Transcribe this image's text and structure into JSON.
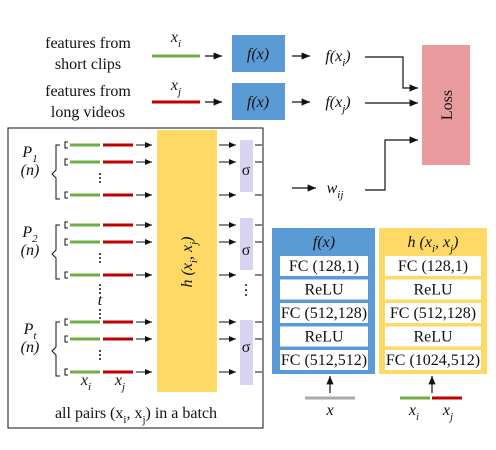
{
  "inputs": [
    {
      "lines": [
        "features from",
        "short clips"
      ],
      "var": "x",
      "sub": "i"
    },
    {
      "lines": [
        "features from",
        "long videos"
      ],
      "var": "x",
      "sub": "j"
    }
  ],
  "encoder": "f(x)",
  "outputs": [
    {
      "pre": "f(x",
      "sub": "i",
      "post": ")"
    },
    {
      "pre": "f(x",
      "sub": "j",
      "post": ")"
    }
  ],
  "weight": {
    "base": "w",
    "sub": "ij"
  },
  "loss": "Loss",
  "panel": {
    "groups": [
      {
        "base": "P",
        "sub": "1",
        "n": "(n)"
      },
      {
        "base": "P",
        "sub": "2",
        "n": "(n)"
      },
      {
        "base": "P",
        "sub": "t",
        "n": "(n)"
      }
    ],
    "between": "t",
    "h": {
      "pre": "h (x",
      "sub1": "i",
      "mid": ", x",
      "sub2": "j",
      "post": ")"
    },
    "sigma": "σ",
    "pair": [
      {
        "base": "x",
        "sub": "i"
      },
      {
        "base": "x",
        "sub": "j"
      }
    ],
    "caption": {
      "pre": "all pairs (x",
      "sub1": "i",
      "mid": ", x",
      "sub2": "j",
      "post": ") in a batch"
    }
  },
  "tables": [
    {
      "header": {
        "pre": "f(x)"
      },
      "rows": [
        "FC (128,1)",
        "ReLU",
        "FC (512,128)",
        "ReLU",
        "FC (512,512)"
      ],
      "input": [
        {
          "base": "x"
        }
      ]
    },
    {
      "header": {
        "pre": "h (x",
        "sub1": "i",
        "mid": ", x",
        "sub2": "j",
        "post": ")"
      },
      "rows": [
        "FC (128,1)",
        "ReLU",
        "FC (512,128)",
        "ReLU",
        "FC (1024,512)"
      ],
      "input": [
        {
          "base": "x",
          "sub": "i"
        },
        {
          "base": "x",
          "sub": "j"
        }
      ]
    }
  ]
}
